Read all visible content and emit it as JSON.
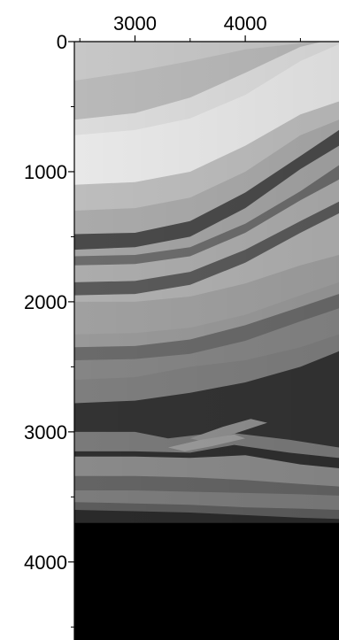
{
  "chart_data": {
    "type": "heatmap",
    "title": "",
    "xlabel": "",
    "ylabel": "",
    "x_ticks": [
      {
        "value": 3000,
        "label": "3000"
      },
      {
        "value": 4000,
        "label": "4000"
      }
    ],
    "x_minor_ticks": [
      2500,
      3500,
      4500
    ],
    "y_ticks": [
      {
        "value": 0,
        "label": "0"
      },
      {
        "value": 1000,
        "label": "1000"
      },
      {
        "value": 2000,
        "label": "2000"
      },
      {
        "value": 3000,
        "label": "3000"
      },
      {
        "value": 4000,
        "label": "4000"
      }
    ],
    "y_minor_ticks": [
      500,
      1500,
      2500,
      3500,
      4500
    ],
    "xlim": [
      2450,
      4850
    ],
    "ylim": [
      0,
      4600
    ],
    "y_inverted": true,
    "x_axis_position": "top",
    "colormap": "grayscale",
    "bottom_uniform_value_color": "#000000",
    "bottom_uniform_top_depth": 3700,
    "layers": [
      {
        "color": "#c7c7c7",
        "top": [
          [
            2450,
            100
          ],
          [
            3000,
            80
          ],
          [
            3500,
            30
          ],
          [
            4000,
            0
          ],
          [
            4850,
            0
          ]
        ]
      },
      {
        "color": "#b9b9b9",
        "top": [
          [
            2450,
            300
          ],
          [
            3000,
            230
          ],
          [
            3500,
            150
          ],
          [
            4000,
            60
          ],
          [
            4850,
            -20
          ]
        ]
      },
      {
        "color": "#dcdcdc",
        "top": [
          [
            2450,
            600
          ],
          [
            3000,
            550
          ],
          [
            3500,
            430
          ],
          [
            4000,
            240
          ],
          [
            4500,
            40
          ],
          [
            4850,
            -30
          ]
        ]
      },
      {
        "color": "#e8e8e8",
        "top": [
          [
            2450,
            720
          ],
          [
            3000,
            680
          ],
          [
            3500,
            590
          ],
          [
            4000,
            410
          ],
          [
            4500,
            150
          ],
          [
            4850,
            20
          ]
        ]
      },
      {
        "color": "#bdbdbd",
        "top": [
          [
            2450,
            1100
          ],
          [
            3000,
            1080
          ],
          [
            3500,
            1000
          ],
          [
            4000,
            800
          ],
          [
            4500,
            560
          ],
          [
            4850,
            460
          ]
        ]
      },
      {
        "color": "#aaaaaa",
        "top": [
          [
            2450,
            1300
          ],
          [
            3000,
            1280
          ],
          [
            3500,
            1200
          ],
          [
            4000,
            1000
          ],
          [
            4500,
            720
          ],
          [
            4850,
            600
          ]
        ]
      },
      {
        "color": "#4a4a4a",
        "top": [
          [
            2450,
            1480
          ],
          [
            3000,
            1470
          ],
          [
            3500,
            1380
          ],
          [
            4000,
            1160
          ],
          [
            4500,
            880
          ],
          [
            4850,
            680
          ]
        ]
      },
      {
        "color": "#a4a4a4",
        "top": [
          [
            2450,
            1600
          ],
          [
            3000,
            1580
          ],
          [
            3500,
            1500
          ],
          [
            4000,
            1280
          ],
          [
            4500,
            980
          ],
          [
            4850,
            800
          ]
        ]
      },
      {
        "color": "#6c6c6c",
        "top": [
          [
            2450,
            1650
          ],
          [
            3000,
            1640
          ],
          [
            3500,
            1580
          ],
          [
            4000,
            1400
          ],
          [
            4500,
            1150
          ],
          [
            4850,
            950
          ]
        ]
      },
      {
        "color": "#acacac",
        "top": [
          [
            2450,
            1720
          ],
          [
            3000,
            1710
          ],
          [
            3500,
            1650
          ],
          [
            4000,
            1470
          ],
          [
            4500,
            1220
          ],
          [
            4850,
            1060
          ]
        ]
      },
      {
        "color": "#5a5a5a",
        "top": [
          [
            2450,
            1850
          ],
          [
            3000,
            1840
          ],
          [
            3500,
            1770
          ],
          [
            4000,
            1600
          ],
          [
            4500,
            1380
          ],
          [
            4850,
            1230
          ]
        ]
      },
      {
        "color": "#b0b0b0",
        "top": [
          [
            2450,
            1950
          ],
          [
            3000,
            1940
          ],
          [
            3500,
            1870
          ],
          [
            4000,
            1700
          ],
          [
            4500,
            1470
          ],
          [
            4850,
            1320
          ]
        ]
      },
      {
        "color": "#a0a0a0",
        "top": [
          [
            2450,
            2000
          ],
          [
            3000,
            2000
          ],
          [
            3500,
            1960
          ],
          [
            4000,
            1860
          ],
          [
            4500,
            1720
          ],
          [
            4850,
            1640
          ]
        ]
      },
      {
        "color": "#999999",
        "top": [
          [
            2450,
            2250
          ],
          [
            3000,
            2240
          ],
          [
            3500,
            2200
          ],
          [
            4000,
            2100
          ],
          [
            4500,
            1950
          ],
          [
            4850,
            1850
          ]
        ]
      },
      {
        "color": "#6a6a6a",
        "top": [
          [
            2450,
            2350
          ],
          [
            3000,
            2340
          ],
          [
            3500,
            2290
          ],
          [
            4000,
            2180
          ],
          [
            4500,
            2040
          ],
          [
            4850,
            1940
          ]
        ]
      },
      {
        "color": "#858585",
        "top": [
          [
            2450,
            2450
          ],
          [
            3000,
            2440
          ],
          [
            3500,
            2400
          ],
          [
            4000,
            2300
          ],
          [
            4500,
            2150
          ],
          [
            4850,
            2050
          ]
        ]
      },
      {
        "color": "#7e7e7e",
        "top": [
          [
            2450,
            2600
          ],
          [
            3000,
            2580
          ],
          [
            3500,
            2500
          ],
          [
            4000,
            2450
          ],
          [
            4500,
            2350
          ],
          [
            4850,
            2250
          ]
        ]
      },
      {
        "color": "#333333",
        "top": [
          [
            2450,
            2780
          ],
          [
            3000,
            2760
          ],
          [
            3500,
            2700
          ],
          [
            4000,
            2620
          ],
          [
            4500,
            2500
          ],
          [
            4850,
            2380
          ]
        ]
      },
      {
        "color": "#7a7a7a",
        "top": [
          [
            2450,
            3000
          ],
          [
            3000,
            3000
          ],
          [
            3300,
            3050
          ],
          [
            3800,
            3000
          ],
          [
            4400,
            3060
          ],
          [
            4850,
            3120
          ]
        ]
      },
      {
        "color": "#2f2f2f",
        "top": [
          [
            2450,
            3150
          ],
          [
            3000,
            3150
          ],
          [
            3500,
            3160
          ],
          [
            3900,
            3100
          ],
          [
            4400,
            3160
          ],
          [
            4850,
            3200
          ]
        ]
      },
      {
        "color": "#8a8a8a",
        "top": [
          [
            2450,
            3190
          ],
          [
            3000,
            3190
          ],
          [
            3500,
            3200
          ],
          [
            4000,
            3180
          ],
          [
            4500,
            3250
          ],
          [
            4850,
            3280
          ]
        ]
      },
      {
        "color": "#646464",
        "top": [
          [
            2450,
            3340
          ],
          [
            3000,
            3340
          ],
          [
            3500,
            3350
          ],
          [
            4000,
            3370
          ],
          [
            4500,
            3400
          ],
          [
            4850,
            3420
          ]
        ]
      },
      {
        "color": "#7c7c7c",
        "top": [
          [
            2450,
            3450
          ],
          [
            3000,
            3450
          ],
          [
            3500,
            3460
          ],
          [
            4000,
            3470
          ],
          [
            4500,
            3480
          ],
          [
            4850,
            3490
          ]
        ]
      },
      {
        "color": "#5c5c5c",
        "top": [
          [
            2450,
            3540
          ],
          [
            3000,
            3550
          ],
          [
            3500,
            3560
          ],
          [
            4000,
            3580
          ],
          [
            4500,
            3590
          ],
          [
            4850,
            3600
          ]
        ]
      },
      {
        "color": "#2a2a2a",
        "top": [
          [
            2450,
            3600
          ],
          [
            3000,
            3610
          ],
          [
            3500,
            3620
          ],
          [
            4000,
            3640
          ],
          [
            4500,
            3660
          ],
          [
            4850,
            3670
          ]
        ]
      },
      {
        "color": "#000000",
        "top": [
          [
            2450,
            3700
          ],
          [
            3000,
            3700
          ],
          [
            3500,
            3700
          ],
          [
            4000,
            3700
          ],
          [
            4850,
            3700
          ]
        ]
      }
    ],
    "lenses": [
      {
        "color": "#8e8e8e",
        "polygon": [
          [
            3500,
            3050
          ],
          [
            3800,
            2960
          ],
          [
            4050,
            2900
          ],
          [
            4200,
            2930
          ],
          [
            3950,
            3000
          ],
          [
            3650,
            3080
          ]
        ]
      },
      {
        "color": "#9a9a9a",
        "polygon": [
          [
            3300,
            3120
          ],
          [
            3600,
            3060
          ],
          [
            3900,
            3020
          ],
          [
            4000,
            3050
          ],
          [
            3700,
            3110
          ],
          [
            3450,
            3150
          ]
        ]
      }
    ],
    "grid": false
  }
}
